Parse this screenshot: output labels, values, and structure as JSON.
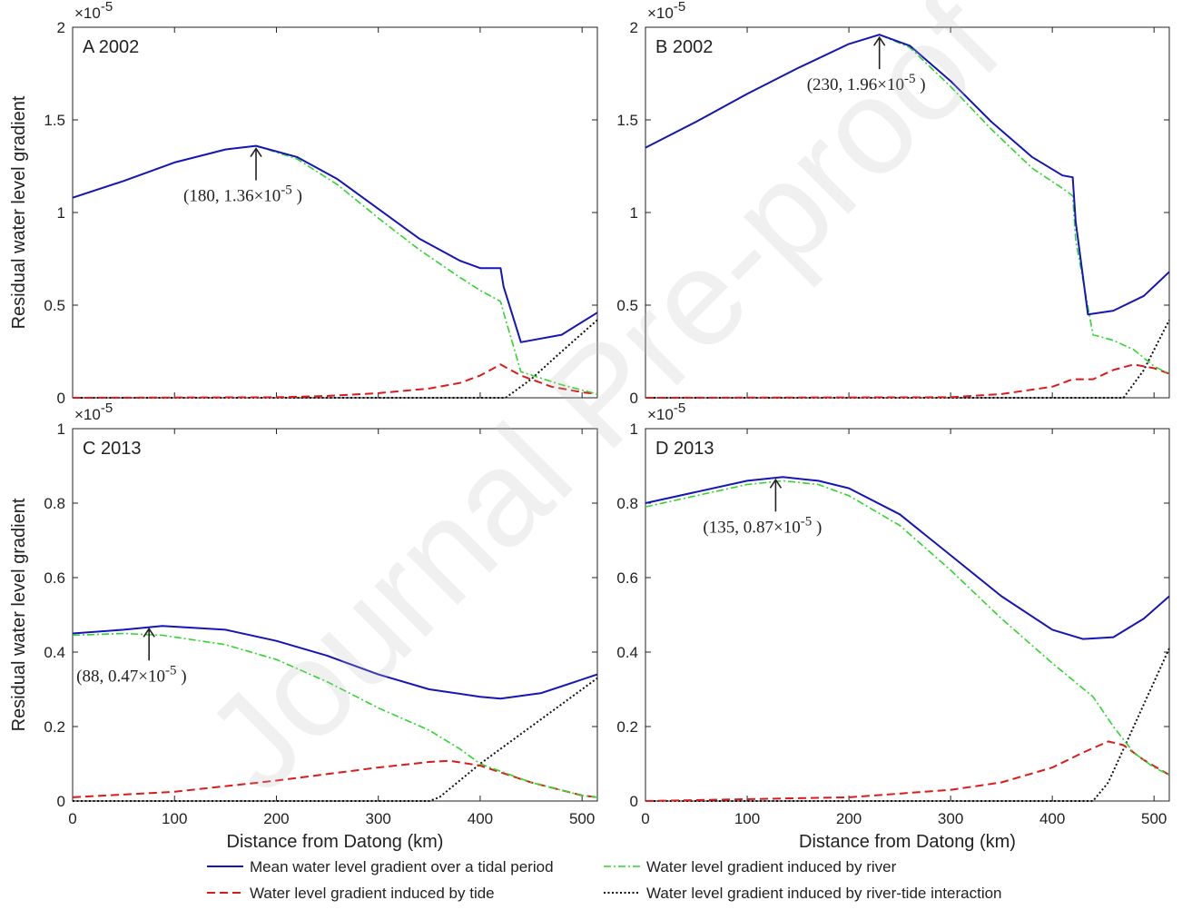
{
  "watermark": "Journal Pre-proof",
  "colors": {
    "mean": "#1515b8",
    "river": "#2ed62e",
    "tide": "#dd1a1a",
    "interaction": "#111111"
  },
  "legend": [
    {
      "key": "mean",
      "label": "Mean water level gradient over a tidal period",
      "dash": "solid"
    },
    {
      "key": "river",
      "label": "Water level gradient induced by river",
      "dash": "dashdot"
    },
    {
      "key": "tide",
      "label": "Water level gradient induced by tide",
      "dash": "dashed"
    },
    {
      "key": "interaction",
      "label": "Water level gradient  induced by river-tide interaction",
      "dash": "dotted"
    }
  ],
  "chart_data": [
    {
      "type": "line",
      "title": "A 2002",
      "xlabel": "",
      "ylabel": "Residual water level gradient",
      "xlim": [
        0,
        515
      ],
      "ylim": [
        0,
        2
      ],
      "yticks": [
        0,
        0.5,
        1,
        1.5,
        2
      ],
      "ytick_labels": [
        "0",
        "0.5",
        "1",
        "1.5",
        "2"
      ],
      "xticks": [
        0,
        100,
        200,
        300,
        400,
        500
      ],
      "xtick_labels": [],
      "multiplier": "×10",
      "multiplier_exp": "-5",
      "annotation": {
        "text": "(180, 1.36×10",
        "exp": "-5",
        "close": " )",
        "x": 180,
        "y": 1.36
      },
      "series": [
        {
          "key": "mean",
          "x": [
            0,
            50,
            100,
            150,
            180,
            220,
            260,
            300,
            340,
            380,
            400,
            420,
            423,
            440,
            480,
            515
          ],
          "y": [
            1.08,
            1.17,
            1.27,
            1.34,
            1.36,
            1.3,
            1.18,
            1.02,
            0.86,
            0.74,
            0.7,
            0.7,
            0.6,
            0.3,
            0.34,
            0.46
          ]
        },
        {
          "key": "river",
          "x": [
            0,
            50,
            100,
            150,
            180,
            220,
            260,
            300,
            340,
            380,
            400,
            420,
            423,
            440,
            480,
            515
          ],
          "y": [
            1.08,
            1.17,
            1.27,
            1.34,
            1.36,
            1.29,
            1.15,
            0.97,
            0.8,
            0.65,
            0.58,
            0.52,
            0.46,
            0.14,
            0.07,
            0.02
          ]
        },
        {
          "key": "tide",
          "x": [
            0,
            200,
            250,
            300,
            350,
            380,
            400,
            420,
            440,
            470,
            500,
            515
          ],
          "y": [
            0,
            0.003,
            0.01,
            0.025,
            0.05,
            0.08,
            0.12,
            0.18,
            0.12,
            0.06,
            0.03,
            0.02
          ]
        },
        {
          "key": "interaction",
          "x": [
            0,
            425,
            450,
            480,
            515
          ],
          "y": [
            0,
            0,
            0.1,
            0.25,
            0.42
          ]
        }
      ]
    },
    {
      "type": "line",
      "title": "B 2002",
      "xlabel": "",
      "ylabel": "",
      "xlim": [
        0,
        515
      ],
      "ylim": [
        0,
        2
      ],
      "yticks": [
        0,
        0.5,
        1,
        1.5,
        2
      ],
      "ytick_labels": [
        "0",
        "0.5",
        "1",
        "1.5",
        "2"
      ],
      "xticks": [
        0,
        100,
        200,
        300,
        400,
        500
      ],
      "xtick_labels": [],
      "multiplier": "×10",
      "multiplier_exp": "-5",
      "annotation": {
        "text": "(230, 1.96×10",
        "exp": "-5",
        "close": " )",
        "x": 230,
        "y": 1.96
      },
      "series": [
        {
          "key": "mean",
          "x": [
            0,
            50,
            100,
            150,
            200,
            230,
            260,
            300,
            340,
            380,
            410,
            420,
            423,
            435,
            460,
            490,
            515
          ],
          "y": [
            1.35,
            1.49,
            1.64,
            1.78,
            1.91,
            1.96,
            1.9,
            1.71,
            1.49,
            1.3,
            1.2,
            1.19,
            0.95,
            0.45,
            0.47,
            0.55,
            0.68
          ]
        },
        {
          "key": "river",
          "x": [
            0,
            50,
            100,
            150,
            200,
            230,
            260,
            300,
            340,
            380,
            410,
            420,
            423,
            440,
            460,
            480,
            500,
            515
          ],
          "y": [
            1.35,
            1.49,
            1.64,
            1.78,
            1.91,
            1.96,
            1.89,
            1.68,
            1.45,
            1.24,
            1.13,
            1.09,
            0.85,
            0.34,
            0.31,
            0.26,
            0.17,
            0.13
          ]
        },
        {
          "key": "tide",
          "x": [
            0,
            300,
            350,
            400,
            420,
            440,
            460,
            480,
            500,
            515
          ],
          "y": [
            0,
            0.003,
            0.02,
            0.06,
            0.1,
            0.1,
            0.15,
            0.18,
            0.16,
            0.13
          ]
        },
        {
          "key": "interaction",
          "x": [
            0,
            470,
            490,
            515
          ],
          "y": [
            0,
            0,
            0.15,
            0.42
          ]
        }
      ]
    },
    {
      "type": "line",
      "title": "C 2013",
      "xlabel": "Distance from Datong (km)",
      "ylabel": "Residual water level gradient",
      "xlim": [
        0,
        515
      ],
      "ylim": [
        0,
        1
      ],
      "yticks": [
        0,
        0.2,
        0.4,
        0.6,
        0.8,
        1
      ],
      "ytick_labels": [
        "0",
        "0.2",
        "0.4",
        "0.6",
        "0.8",
        "1"
      ],
      "xticks": [
        0,
        100,
        200,
        300,
        400,
        500
      ],
      "xtick_labels": [
        "0",
        "100",
        "200",
        "300",
        "400",
        "500"
      ],
      "multiplier": "×10",
      "multiplier_exp": "-5",
      "annotation": {
        "text": "(88, 0.47×10",
        "exp": "-5",
        "close": " )",
        "x": 75,
        "y": 0.47
      },
      "series": [
        {
          "key": "mean",
          "x": [
            0,
            50,
            88,
            150,
            200,
            250,
            300,
            350,
            400,
            420,
            460,
            515
          ],
          "y": [
            0.45,
            0.46,
            0.47,
            0.46,
            0.43,
            0.39,
            0.34,
            0.3,
            0.28,
            0.275,
            0.29,
            0.34
          ]
        },
        {
          "key": "river",
          "x": [
            0,
            50,
            88,
            150,
            200,
            250,
            300,
            350,
            380,
            400,
            450,
            500,
            515
          ],
          "y": [
            0.445,
            0.45,
            0.445,
            0.42,
            0.38,
            0.32,
            0.25,
            0.19,
            0.14,
            0.1,
            0.05,
            0.015,
            0.01
          ]
        },
        {
          "key": "tide",
          "x": [
            0,
            100,
            200,
            300,
            350,
            370,
            400,
            450,
            500,
            515
          ],
          "y": [
            0.01,
            0.025,
            0.055,
            0.09,
            0.105,
            0.108,
            0.095,
            0.05,
            0.015,
            0.01
          ]
        },
        {
          "key": "interaction",
          "x": [
            0,
            350,
            360,
            400,
            450,
            515
          ],
          "y": [
            0,
            0,
            0.01,
            0.1,
            0.2,
            0.33
          ]
        }
      ]
    },
    {
      "type": "line",
      "title": "D 2013",
      "xlabel": "Distance from Datong (km)",
      "ylabel": "",
      "xlim": [
        0,
        515
      ],
      "ylim": [
        0,
        1
      ],
      "yticks": [
        0,
        0.2,
        0.4,
        0.6,
        0.8,
        1
      ],
      "ytick_labels": [
        "0",
        "0.2",
        "0.4",
        "0.6",
        "0.8",
        "1"
      ],
      "xticks": [
        0,
        100,
        200,
        300,
        400,
        500
      ],
      "xtick_labels": [
        "0",
        "100",
        "200",
        "300",
        "400",
        "500"
      ],
      "multiplier": "×10",
      "multiplier_exp": "-5",
      "annotation": {
        "text": "(135, 0.87×10",
        "exp": "-5",
        "close": " )",
        "x": 128,
        "y": 0.87
      },
      "series": [
        {
          "key": "mean",
          "x": [
            0,
            50,
            100,
            135,
            170,
            200,
            250,
            300,
            350,
            400,
            430,
            460,
            490,
            515
          ],
          "y": [
            0.8,
            0.83,
            0.86,
            0.87,
            0.86,
            0.84,
            0.77,
            0.66,
            0.55,
            0.46,
            0.435,
            0.44,
            0.49,
            0.55
          ]
        },
        {
          "key": "river",
          "x": [
            0,
            50,
            100,
            135,
            170,
            200,
            250,
            300,
            350,
            400,
            440,
            460,
            480,
            500,
            515
          ],
          "y": [
            0.79,
            0.82,
            0.85,
            0.86,
            0.85,
            0.82,
            0.74,
            0.62,
            0.49,
            0.37,
            0.28,
            0.2,
            0.13,
            0.09,
            0.07
          ]
        },
        {
          "key": "tide",
          "x": [
            0,
            200,
            300,
            350,
            400,
            430,
            455,
            470,
            490,
            515
          ],
          "y": [
            0,
            0.01,
            0.03,
            0.05,
            0.09,
            0.13,
            0.16,
            0.15,
            0.11,
            0.07
          ]
        },
        {
          "key": "interaction",
          "x": [
            0,
            440,
            455,
            480,
            515
          ],
          "y": [
            0,
            0,
            0.05,
            0.2,
            0.41
          ]
        }
      ]
    }
  ]
}
